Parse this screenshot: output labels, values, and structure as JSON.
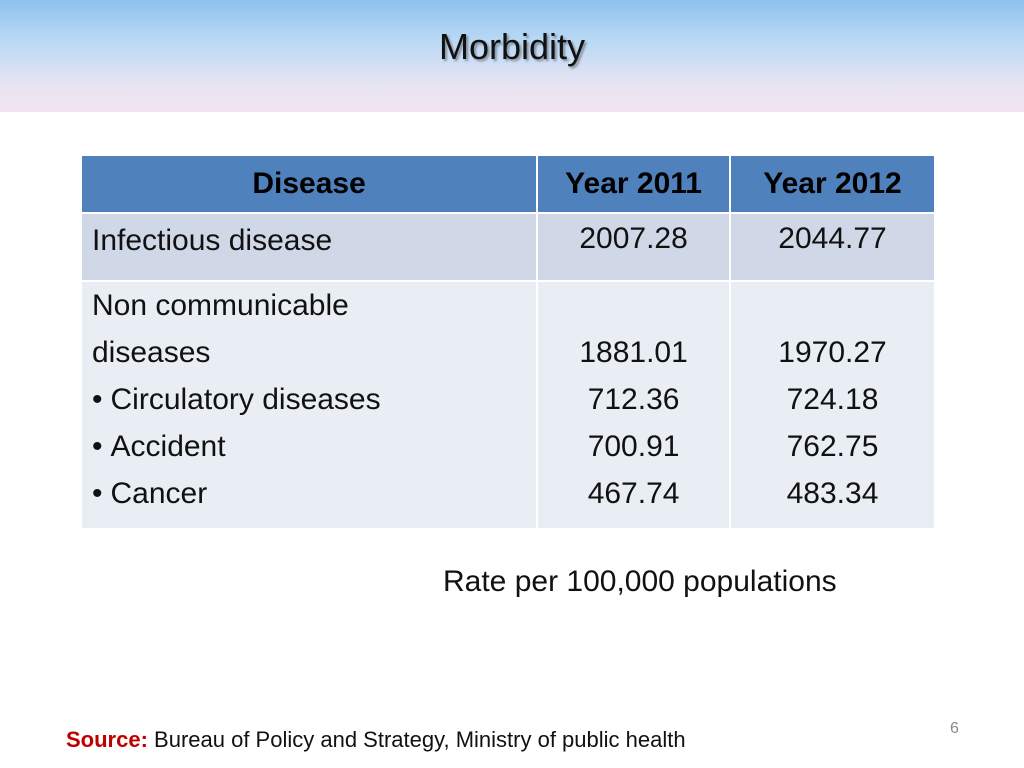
{
  "title": "Morbidity",
  "table": {
    "headers": [
      "Disease",
      "Year 2011",
      "Year 2012"
    ],
    "row1": {
      "disease": "Infectious disease",
      "year_2011": "2007.28",
      "year_2012": "2044.77"
    },
    "row2": {
      "disease_lines": [
        "Non communicable",
        "diseases",
        "Circulatory diseases",
        "Accident",
        "Cancer"
      ],
      "year_2011": [
        "1881.01",
        "712.36",
        "700.91",
        "467.74"
      ],
      "year_2012": [
        "1970.27",
        "724.18",
        "762.75",
        "483.34"
      ]
    }
  },
  "note": "Rate per 100,000 populations",
  "source": {
    "label": "Source:",
    "text": "Bureau of Policy and Strategy, Ministry of public health"
  },
  "page_number": "6",
  "colors": {
    "header_bg": "#4f81bd",
    "row_odd_bg": "#d0d8e8",
    "row_even_bg": "#e9edf4",
    "source_label": "#c00000"
  }
}
